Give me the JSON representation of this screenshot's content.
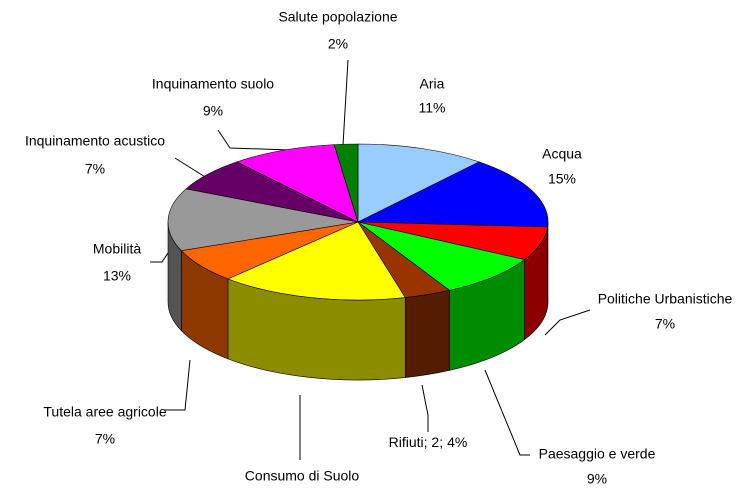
{
  "chart_data": {
    "type": "pie",
    "three_d": true,
    "categories": [
      "Aria",
      "Acqua",
      "Politiche Urbanistiche",
      "Paesaggio e verde",
      "Rifiuti; 2;",
      "Consumo di Suolo",
      "Tutela aree agricole",
      "Mobilità",
      "Inquinamento acustico",
      "Inquinamento suolo",
      "Salute popolazione"
    ],
    "values": [
      11,
      15,
      7,
      9,
      4,
      16,
      7,
      13,
      7,
      9,
      2
    ],
    "value_labels": [
      "11%",
      "15%",
      "7%",
      "9%",
      "4%",
      null,
      "7%",
      "13%",
      "7%",
      "9%",
      "2%"
    ],
    "colors": [
      "#99ccff",
      "#0000ff",
      "#ff0000",
      "#00ff00",
      "#993300",
      "#ffff00",
      "#ff6600",
      "#999999",
      "#660066",
      "#ff00ff",
      "#008000"
    ]
  }
}
